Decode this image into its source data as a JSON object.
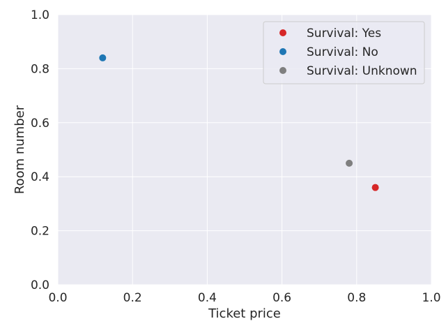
{
  "chart_data": {
    "type": "scatter",
    "xlabel": "Ticket price",
    "ylabel": "Room number",
    "xlim": [
      0,
      1
    ],
    "ylim": [
      0,
      1
    ],
    "xticks": [
      "0.0",
      "0.2",
      "0.4",
      "0.6",
      "0.8",
      "1.0"
    ],
    "yticks": [
      "0.0",
      "0.2",
      "0.4",
      "0.6",
      "0.8",
      "1.0"
    ],
    "grid": true,
    "legend_position": "top-right",
    "series": [
      {
        "name": "Survival: Yes",
        "color": "#d62728",
        "points": [
          {
            "x": 0.85,
            "y": 0.36
          }
        ]
      },
      {
        "name": "Survival: No",
        "color": "#1f77b4",
        "points": [
          {
            "x": 0.12,
            "y": 0.84
          }
        ]
      },
      {
        "name": "Survival: Unknown",
        "color": "#7f7f7f",
        "points": [
          {
            "x": 0.78,
            "y": 0.45
          }
        ]
      }
    ]
  }
}
